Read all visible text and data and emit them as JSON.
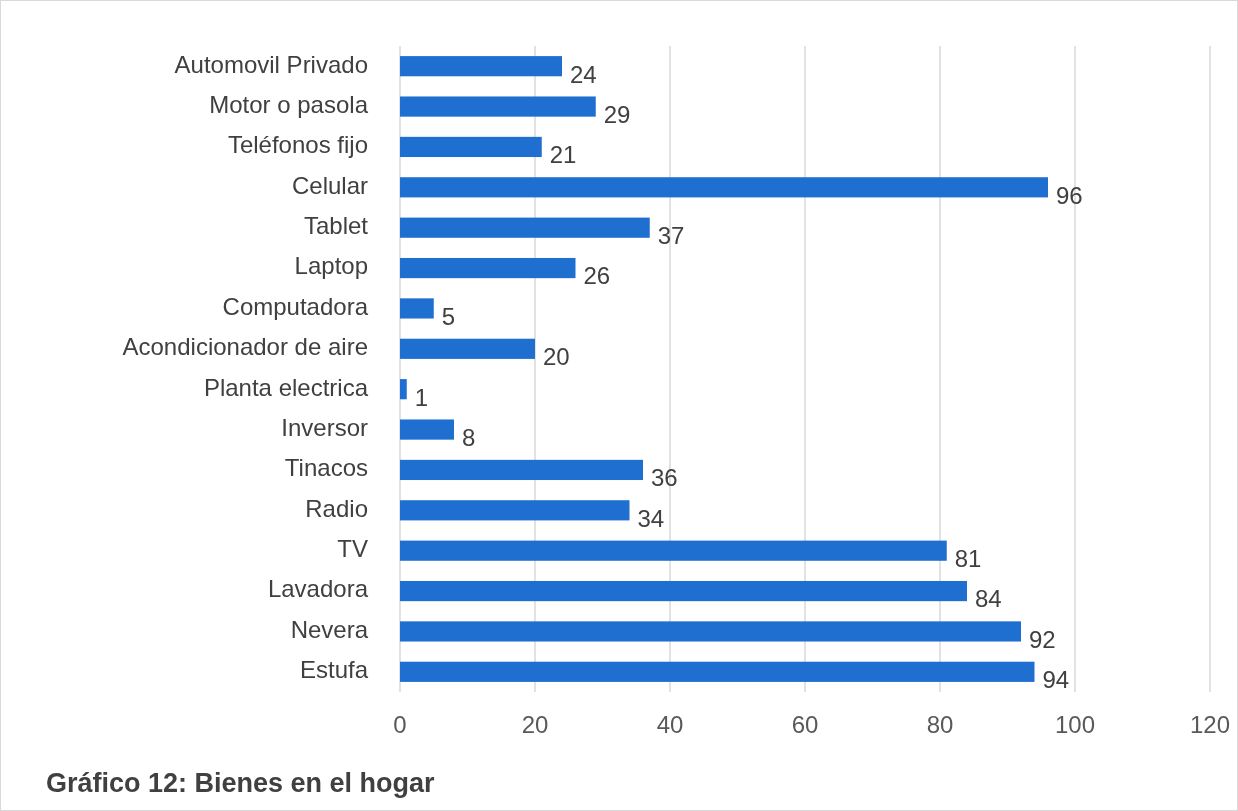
{
  "chart_data": {
    "type": "bar",
    "orientation": "horizontal",
    "title": "Gráfico 12: Bienes en el hogar",
    "categories": [
      "Automovil Privado",
      "Motor o pasola",
      "Teléfonos fijo",
      "Celular",
      "Tablet",
      "Laptop",
      "Computadora",
      "Acondicionador de aire",
      "Planta electrica",
      "Inversor",
      "Tinacos",
      "Radio",
      "TV",
      "Lavadora",
      "Nevera",
      "Estufa"
    ],
    "values": [
      24,
      29,
      21,
      96,
      37,
      26,
      5,
      20,
      1,
      8,
      36,
      34,
      81,
      84,
      92,
      94
    ],
    "color": "#1f6fd0",
    "xlim": [
      0,
      120
    ],
    "xticks": [
      0,
      20,
      40,
      60,
      80,
      100,
      120
    ],
    "grid": "x",
    "data_labels": true
  }
}
